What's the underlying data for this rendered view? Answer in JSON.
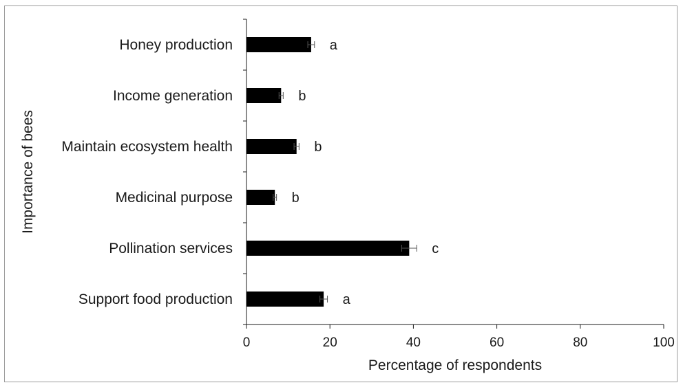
{
  "chart_data": {
    "type": "bar",
    "orientation": "horizontal",
    "title": "",
    "xlabel": "Percentage of respondents",
    "ylabel": "Importance of bees",
    "xlim": [
      0,
      100
    ],
    "xticks": [
      "0",
      "20",
      "40",
      "60",
      "80",
      "100"
    ],
    "categories": [
      "Honey production",
      "Income generation",
      "Maintain ecosystem health",
      "Medicinal purpose",
      "Pollination services",
      "Support food production"
    ],
    "values": [
      15.5,
      8.3,
      12.0,
      6.8,
      39.0,
      18.5
    ],
    "errors": [
      0.8,
      0.5,
      0.6,
      0.4,
      1.8,
      0.9
    ],
    "significance_letters": [
      "a",
      "b",
      "b",
      "b",
      "c",
      "a"
    ],
    "bar_color": "#000000",
    "grid": false,
    "legend": "none"
  }
}
